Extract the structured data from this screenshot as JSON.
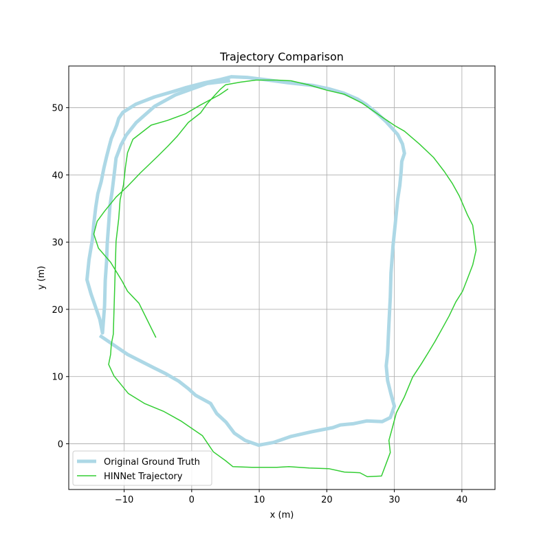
{
  "chart_data": {
    "type": "line",
    "title": "Trajectory Comparison",
    "xlabel": "x (m)",
    "ylabel": "y (m)",
    "xlim": [
      -18.2,
      44.9
    ],
    "ylim": [
      -6.8,
      56.2
    ],
    "xticks": [
      -10,
      0,
      10,
      20,
      30,
      40
    ],
    "yticks": [
      0,
      10,
      20,
      30,
      40,
      50
    ],
    "xtick_labels": [
      "−10",
      "0",
      "10",
      "20",
      "30",
      "40"
    ],
    "ytick_labels": [
      "0",
      "10",
      "20",
      "30",
      "40",
      "50"
    ],
    "grid": true,
    "legend_position": "lower-left",
    "series": [
      {
        "name": "Original Ground Truth",
        "color": "#add8e6",
        "x": [
          -13.6,
          -9.5,
          -5.6,
          -3.8,
          -1.9,
          -0.5,
          0.6,
          2.8,
          3.7,
          5.1,
          6.3,
          7.9,
          9.9,
          12.1,
          14.7,
          17.8,
          20.9,
          22.0,
          24.0,
          25.9,
          28.2,
          29.4,
          30.0,
          29.5,
          29.0,
          28.8,
          29.0,
          29.1,
          29.2,
          29.4,
          29.5,
          29.8,
          30.2,
          30.5,
          30.8,
          31.0,
          31.1,
          31.5,
          31.2,
          30.5,
          28.8,
          27.4,
          25.8,
          24.5,
          22.4,
          20.3,
          18.0,
          14.3,
          10.7,
          8.2,
          5.9,
          4.3,
          1.9,
          -0.8,
          -2.4,
          -5.5,
          -8.3,
          -10.2,
          -10.8,
          -11.1,
          -11.4,
          -11.9,
          -12.2,
          -12.6,
          -13.0,
          -13.4,
          -13.9,
          -14.2,
          -14.5,
          -14.7,
          -15.2,
          -15.5,
          -14.9,
          -13.6,
          -13.2,
          -12.9,
          -12.8,
          -12.6,
          -12.5,
          -12.3,
          -12.1,
          -11.8,
          -11.6,
          -11.4,
          -11.2,
          -10.7,
          -10.5,
          -9.7,
          -8.2,
          -5.5,
          -2.4,
          2.3,
          5.7
        ],
        "y": [
          16.1,
          13.3,
          11.3,
          10.4,
          9.3,
          8.2,
          7.2,
          6.0,
          4.5,
          3.2,
          1.6,
          0.5,
          -0.2,
          0.2,
          1.1,
          1.8,
          2.4,
          2.8,
          3.0,
          3.4,
          3.3,
          3.9,
          5.6,
          7.4,
          9.4,
          11.6,
          13.5,
          15.8,
          17.8,
          21.8,
          25.4,
          29.4,
          33.4,
          36.4,
          38.4,
          40.4,
          42.0,
          43.2,
          44.6,
          46.0,
          47.9,
          49.2,
          50.5,
          51.3,
          52.2,
          52.8,
          53.3,
          53.7,
          54.2,
          54.5,
          54.6,
          54.2,
          53.7,
          53.0,
          52.5,
          51.6,
          50.5,
          49.3,
          48.4,
          47.4,
          46.6,
          45.4,
          44.3,
          42.7,
          41.0,
          39.0,
          37.2,
          35.2,
          32.7,
          30.4,
          27.4,
          24.4,
          22.3,
          18.5,
          16.5,
          20.5,
          24.3,
          27.1,
          29.8,
          32.6,
          35.4,
          37.4,
          39.0,
          40.7,
          42.5,
          43.8,
          44.4,
          45.9,
          47.8,
          50.2,
          51.9,
          53.6,
          54.0
        ]
      },
      {
        "name": "HINNet Trajectory",
        "color": "#32cd32",
        "x": [
          -5.3,
          -7.8,
          -9.5,
          -10.3,
          -12.0,
          -13.8,
          -14.5,
          -14.0,
          -12.9,
          -11.2,
          -9.5,
          -7.6,
          -5.0,
          -3.5,
          -2.1,
          -0.5,
          1.3,
          2.3,
          3.1,
          4.2,
          5.0,
          7.2,
          9.5,
          12.6,
          14.7,
          17.3,
          20.0,
          22.6,
          25.2,
          27.9,
          30.1,
          31.5,
          33.7,
          35.8,
          37.4,
          38.6,
          39.6,
          40.8,
          41.6,
          42.1,
          41.6,
          40.8,
          40.1,
          39.1,
          38.1,
          37.0,
          36.0,
          35.1,
          34.0,
          32.7,
          31.5,
          30.3,
          29.6,
          29.2,
          29.4,
          28.1,
          26.0,
          24.9,
          22.6,
          20.3,
          17.4,
          14.4,
          12.6,
          8.9,
          6.1,
          5.0,
          3.2,
          1.6,
          -1.6,
          -4.1,
          -7.0,
          -9.4,
          -11.5,
          -12.3,
          -12.0,
          -11.9,
          -11.6,
          -11.2,
          -10.8,
          -10.6,
          -10.1,
          -9.8,
          -9.5,
          -8.7,
          -6.0,
          -3.6,
          -0.9,
          1.3,
          4.1,
          5.4
        ],
        "y": [
          15.8,
          20.9,
          22.7,
          24.2,
          27.0,
          29.1,
          31.2,
          33.1,
          34.6,
          36.7,
          38.3,
          40.3,
          42.8,
          44.3,
          45.8,
          47.8,
          49.2,
          50.6,
          51.5,
          52.7,
          53.4,
          53.8,
          54.1,
          54.1,
          54.0,
          53.4,
          52.6,
          52.0,
          50.7,
          48.8,
          47.3,
          46.5,
          44.6,
          42.6,
          40.5,
          38.7,
          36.9,
          34.1,
          32.5,
          28.8,
          26.6,
          24.5,
          22.7,
          21.1,
          19.0,
          17.0,
          15.2,
          13.7,
          11.9,
          9.9,
          7.0,
          4.6,
          2.0,
          0.5,
          -1.3,
          -4.8,
          -4.9,
          -4.3,
          -4.2,
          -3.7,
          -3.6,
          -3.4,
          -3.5,
          -3.5,
          -3.4,
          -2.5,
          -1.2,
          1.2,
          3.4,
          4.8,
          6.0,
          7.5,
          10.1,
          11.8,
          13.3,
          14.8,
          16.3,
          30.1,
          33.5,
          36.3,
          38.5,
          41.2,
          43.3,
          45.3,
          47.4,
          48.1,
          49.1,
          50.4,
          51.9,
          52.8
        ]
      }
    ]
  }
}
